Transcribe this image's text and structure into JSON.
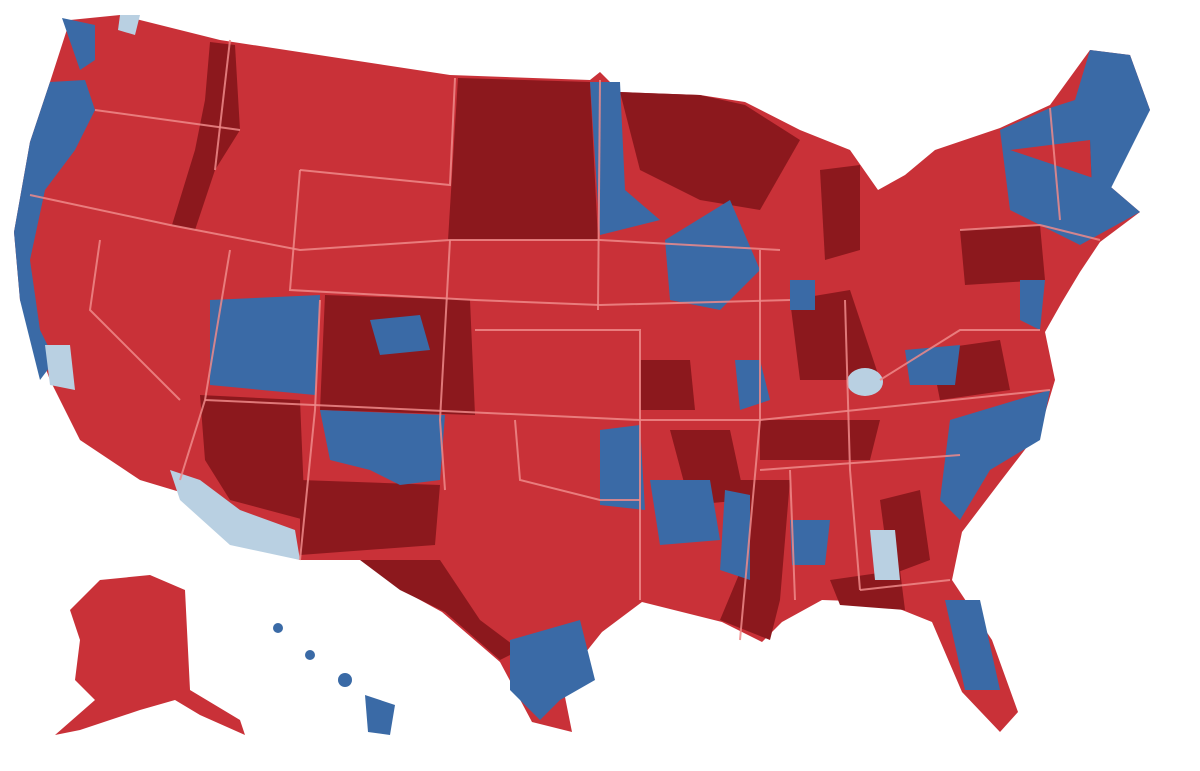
{
  "map": {
    "subject": "United States",
    "text_visible": false,
    "colors": {
      "background": "#ffffff",
      "red": "#c93138",
      "dark_red": "#8c181d",
      "blue": "#3a6aa6",
      "light_blue": "#b9d0e2",
      "border": "#ee8a8a"
    },
    "regions": [
      "contiguous-us",
      "alaska",
      "hawaii"
    ]
  }
}
